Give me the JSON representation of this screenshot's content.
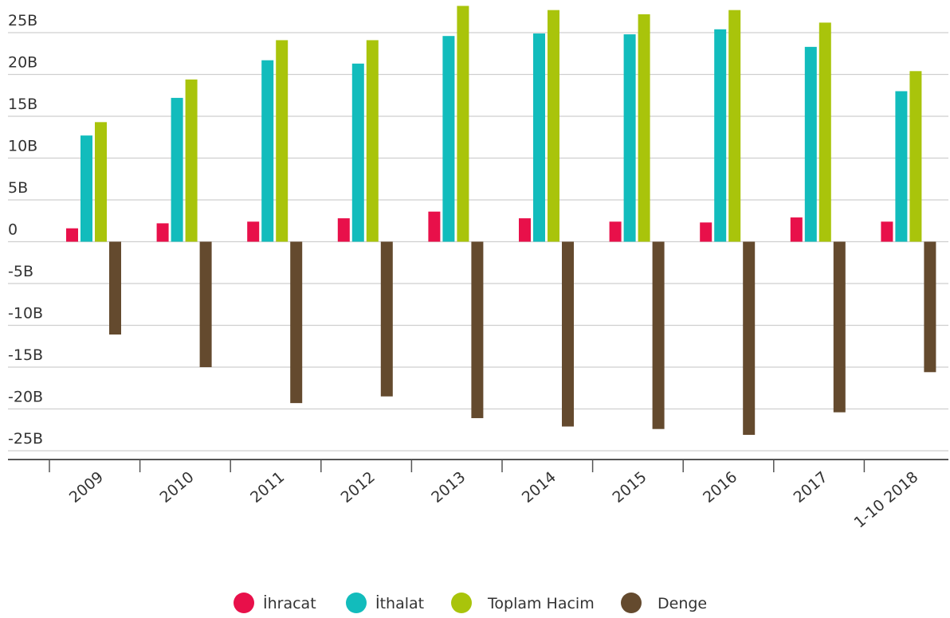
{
  "chart_data": {
    "type": "bar",
    "title": "",
    "xlabel": "",
    "ylabel": "",
    "categories": [
      "2009",
      "2010",
      "2011",
      "2012",
      "2013",
      "2014",
      "2015",
      "2016",
      "2017",
      "1-10 2018"
    ],
    "series": [
      {
        "name": "İhracat",
        "color": "#e8104a",
        "values": [
          1.6,
          2.2,
          2.4,
          2.8,
          3.6,
          2.8,
          2.4,
          2.3,
          2.9,
          2.4
        ]
      },
      {
        "name": "İthalat",
        "color": "#12bcbc",
        "values": [
          12.7,
          17.2,
          21.7,
          21.3,
          24.6,
          24.9,
          24.8,
          25.4,
          23.3,
          18.0
        ]
      },
      {
        "name": "Toplam Hacim",
        "color": "#a9c40b",
        "values": [
          14.3,
          19.4,
          24.1,
          24.1,
          28.2,
          27.7,
          27.2,
          27.7,
          26.2,
          20.4
        ]
      },
      {
        "name": "Denge",
        "color": "#644a2e",
        "values": [
          -11.1,
          -15.0,
          -19.3,
          -18.5,
          -21.1,
          -22.1,
          -22.4,
          -23.1,
          -20.4,
          -15.6
        ]
      }
    ],
    "yticks": [
      25,
      20,
      15,
      10,
      5,
      0,
      -5,
      -10,
      -15,
      -20,
      -25
    ],
    "ytick_labels": [
      "25B",
      "20B",
      "15B",
      "10B",
      "5B",
      "0",
      "-5B",
      "-10B",
      "-15B",
      "-20B",
      "-25B"
    ],
    "ylim": [
      -27,
      28
    ],
    "grid": true,
    "legend": "bottom-center"
  }
}
